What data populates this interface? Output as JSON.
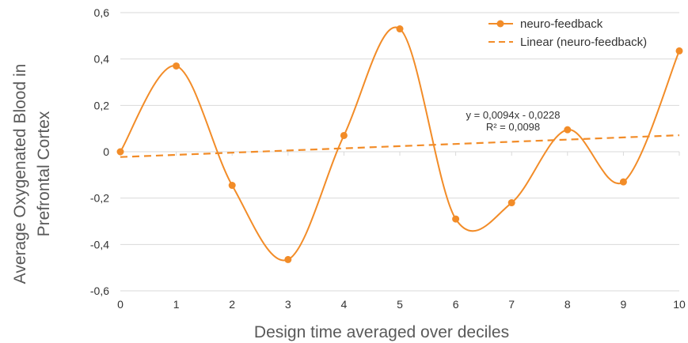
{
  "chart_data": {
    "type": "line",
    "title": "",
    "xlabel": "Design time averaged over deciles",
    "ylabel_line1": "Average Oxygenated Blood in",
    "ylabel_line2": "Prefrontal Cortex",
    "x": [
      0,
      1,
      2,
      3,
      4,
      5,
      6,
      7,
      8,
      9,
      10
    ],
    "xlim": [
      0,
      10
    ],
    "ylim": [
      -0.6,
      0.6
    ],
    "x_ticks": [
      "0",
      "1",
      "2",
      "3",
      "4",
      "5",
      "6",
      "7",
      "8",
      "9",
      "10"
    ],
    "y_ticks": [
      {
        "value": 0.6,
        "label": "0,6"
      },
      {
        "value": 0.4,
        "label": "0,4"
      },
      {
        "value": 0.2,
        "label": "0,2"
      },
      {
        "value": 0.0,
        "label": "0"
      },
      {
        "value": -0.2,
        "label": "-0,2"
      },
      {
        "value": -0.4,
        "label": "-0,4"
      },
      {
        "value": -0.6,
        "label": "-0,6"
      }
    ],
    "grid": true,
    "legend_position": "top-right",
    "series": [
      {
        "name": "neuro-feedback",
        "color": "#F28C28",
        "style": "smooth-line-with-markers",
        "values": [
          0.0,
          0.37,
          -0.145,
          -0.465,
          0.07,
          0.53,
          -0.29,
          -0.22,
          0.095,
          -0.13,
          0.435
        ]
      }
    ],
    "trendline": {
      "name": "Linear (neuro-feedback)",
      "color": "#F28C28",
      "style": "dashed",
      "slope": 0.0094,
      "intercept": -0.0228,
      "equation": "y = 0,0094x - 0,0228",
      "r_squared": "R² = 0,0098"
    }
  }
}
